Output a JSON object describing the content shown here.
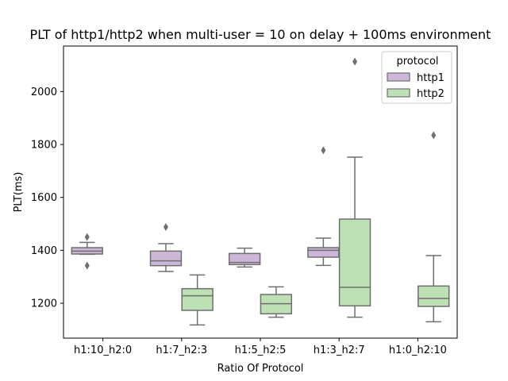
{
  "chart_data": {
    "type": "box",
    "title": "PLT of http1/http2 when multi-user = 10 on delay + 100ms environment",
    "xlabel": "Ratio Of Protocol",
    "ylabel": "PLT(ms)",
    "categories": [
      "h1:10_h2:0",
      "h1:7_h2:3",
      "h1:5_h2:5",
      "h1:3_h2:7",
      "h1:0_h2:10"
    ],
    "ylim": [
      1068,
      2172
    ],
    "yticks": [
      1200,
      1400,
      1600,
      1800,
      2000
    ],
    "grid": false,
    "legend": {
      "title": "protocol",
      "placement": "top-right"
    },
    "series": [
      {
        "name": "http1",
        "color": "#cdb7d9",
        "boxes": [
          {
            "category": "h1:10_h2:0",
            "min": 1385,
            "q1": 1386,
            "median": 1397,
            "q3": 1410,
            "max": 1430,
            "outliers": [
              1450,
              1342
            ]
          },
          {
            "category": "h1:7_h2:3",
            "min": 1320,
            "q1": 1342,
            "median": 1360,
            "q3": 1397,
            "max": 1425,
            "outliers": [
              1488
            ]
          },
          {
            "category": "h1:5_h2:5",
            "min": 1337,
            "q1": 1346,
            "median": 1354,
            "q3": 1388,
            "max": 1408,
            "outliers": []
          },
          {
            "category": "h1:3_h2:7",
            "min": 1343,
            "q1": 1374,
            "median": 1400,
            "q3": 1410,
            "max": 1446,
            "outliers": [
              1778
            ]
          }
        ]
      },
      {
        "name": "http2",
        "color": "#bde0b5",
        "boxes": [
          {
            "category": "h1:7_h2:3",
            "min": 1118,
            "q1": 1173,
            "median": 1228,
            "q3": 1255,
            "max": 1307,
            "outliers": []
          },
          {
            "category": "h1:5_h2:5",
            "min": 1147,
            "q1": 1160,
            "median": 1198,
            "q3": 1233,
            "max": 1262,
            "outliers": []
          },
          {
            "category": "h1:3_h2:7",
            "min": 1147,
            "q1": 1190,
            "median": 1260,
            "q3": 1518,
            "max": 1752,
            "outliers": [
              2113
            ]
          },
          {
            "category": "h1:0_h2:10",
            "min": 1130,
            "q1": 1188,
            "median": 1218,
            "q3": 1265,
            "max": 1380,
            "outliers": [
              1835
            ]
          }
        ]
      }
    ]
  }
}
